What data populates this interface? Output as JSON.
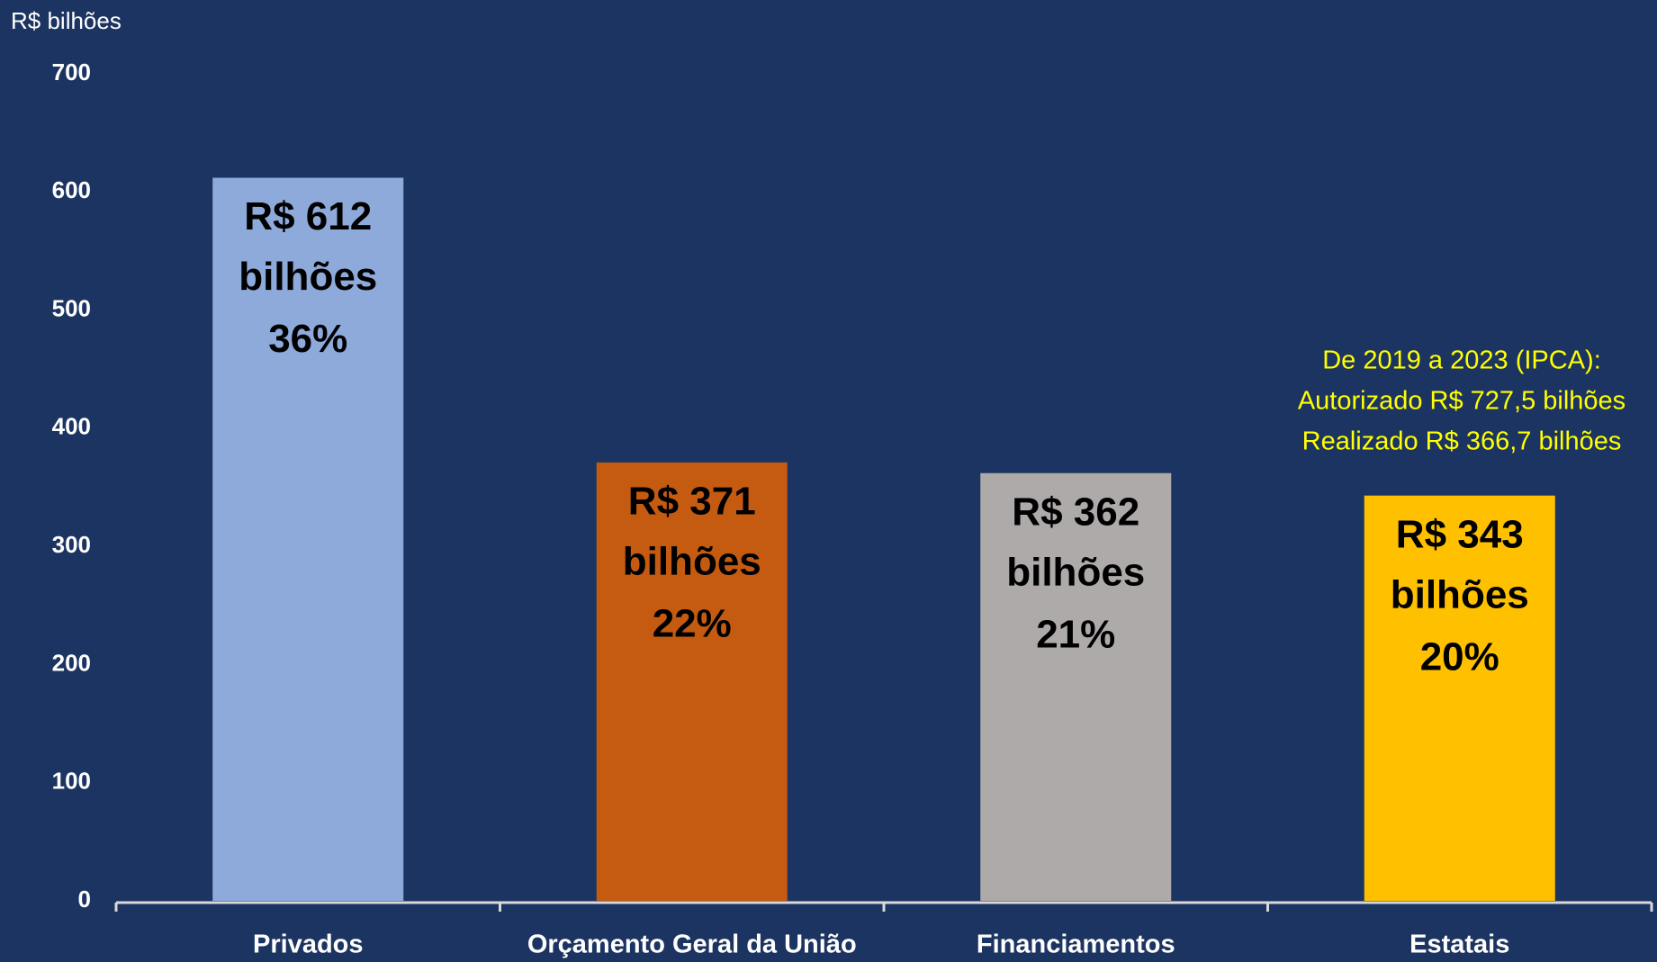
{
  "chart_data": {
    "type": "bar",
    "y_label": "R$ bilhões",
    "categories": [
      "Privados",
      "Orçamento Geral da União",
      "Financiamentos",
      "Estatais"
    ],
    "values": [
      612,
      371,
      362,
      343
    ],
    "value_labels": [
      [
        "R$ 612",
        "bilhões"
      ],
      [
        "R$ 371",
        "bilhões"
      ],
      [
        "R$ 362",
        "bilhões"
      ],
      [
        "R$ 343",
        "bilhões"
      ]
    ],
    "share_labels": [
      "36%",
      "22%",
      "21%",
      "20%"
    ],
    "colors": [
      "#8eaadb",
      "#c55a11",
      "#aeaaaa",
      "#ffc000"
    ],
    "ylim": [
      0,
      700
    ],
    "yticks": [
      0,
      100,
      200,
      300,
      400,
      500,
      600,
      700
    ],
    "grid": false,
    "annotation": [
      "De 2019 a 2023 (IPCA):",
      "Autorizado R$ 727,5 bilhões",
      "Realizado R$ 366,7 bilhões"
    ]
  }
}
